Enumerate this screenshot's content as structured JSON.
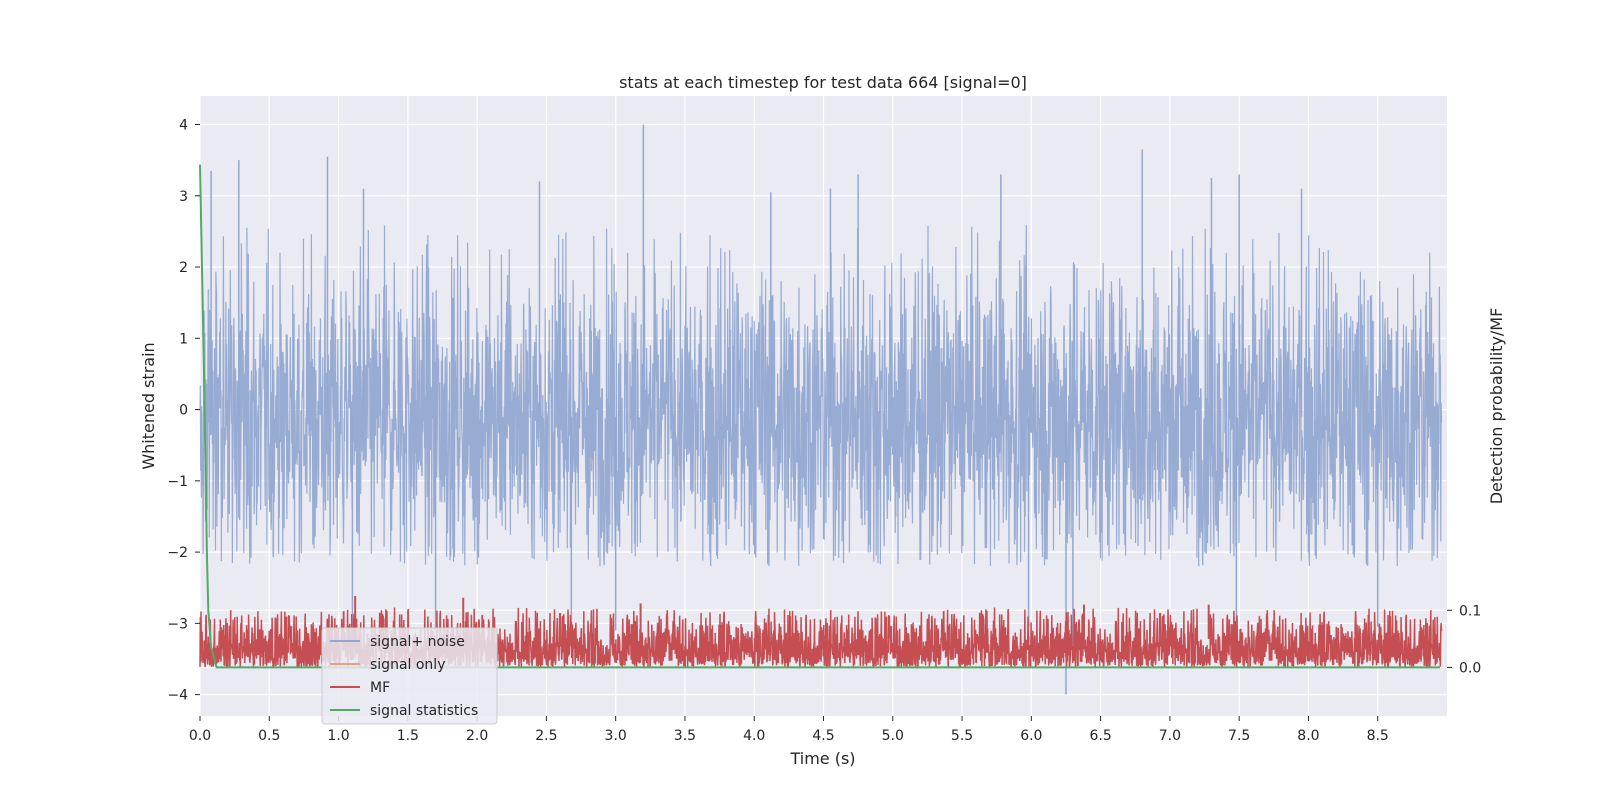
{
  "chart_data": {
    "type": "line",
    "title": "stats at each timestep for test data 664 [signal=0]",
    "xlabel": "Time (s)",
    "ylabel": "Whitened strain",
    "y2label": "Detection probability/MF",
    "xlim": [
      0,
      9.0
    ],
    "ylim": [
      -4.3,
      4.4
    ],
    "y2lim": [
      -0.085,
      1.0
    ],
    "x_ticks": [
      0.0,
      0.5,
      1.0,
      1.5,
      2.0,
      2.5,
      3.0,
      3.5,
      4.0,
      4.5,
      5.0,
      5.5,
      6.0,
      6.5,
      7.0,
      7.5,
      8.0,
      8.5
    ],
    "x_tick_labels": [
      "0.0",
      "0.5",
      "1.0",
      "1.5",
      "2.0",
      "2.5",
      "3.0",
      "3.5",
      "4.0",
      "4.5",
      "5.0",
      "5.5",
      "6.0",
      "6.5",
      "7.0",
      "7.5",
      "8.0",
      "8.5"
    ],
    "y_ticks": [
      -4,
      -3,
      -2,
      -1,
      0,
      1,
      2,
      3,
      4
    ],
    "y_tick_labels": [
      "−4",
      "−3",
      "−2",
      "−1",
      "0",
      "1",
      "2",
      "3",
      "4"
    ],
    "y2_ticks": [
      0.0,
      0.1
    ],
    "y2_tick_labels": [
      "0.0",
      "0.1"
    ],
    "grid": true,
    "legend_position": "lower-left",
    "series": [
      {
        "name": "signal+ noise",
        "color": "#92a8d1",
        "axis": "left",
        "description_values": {
          "center": -0.1,
          "typical_max": 2.3,
          "typical_min": -1.9
        },
        "peaks": [
          [
            0.08,
            3.35
          ],
          [
            0.28,
            3.5
          ],
          [
            0.92,
            3.55
          ],
          [
            1.1,
            -3.3
          ],
          [
            1.18,
            3.1
          ],
          [
            1.7,
            -3.1
          ],
          [
            2.45,
            3.2
          ],
          [
            2.68,
            -3.1
          ],
          [
            3.0,
            -3.1
          ],
          [
            3.2,
            4.0
          ],
          [
            4.12,
            3.05
          ],
          [
            4.55,
            3.1
          ],
          [
            4.75,
            3.3
          ],
          [
            5.78,
            3.3
          ],
          [
            5.98,
            -3.05
          ],
          [
            6.25,
            -4.0
          ],
          [
            6.3,
            -3.3
          ],
          [
            6.8,
            3.65
          ],
          [
            7.3,
            3.25
          ],
          [
            7.48,
            -3.3
          ],
          [
            7.5,
            3.3
          ],
          [
            7.95,
            3.1
          ],
          [
            8.5,
            -3.05
          ]
        ]
      },
      {
        "name": "signal only",
        "color": "#e8a07e",
        "axis": "left",
        "values_note": ""
      },
      {
        "name": "MF",
        "color": "#c44e52",
        "axis": "right",
        "description_values": {
          "min": 0.0,
          "typical_max": 0.1,
          "peak": 0.13
        },
        "peaks": [
          [
            1.12,
            0.125
          ],
          [
            1.9,
            0.122
          ],
          [
            3.18,
            0.112
          ],
          [
            6.38,
            0.11
          ],
          [
            7.28,
            0.11
          ]
        ]
      },
      {
        "name": "signal statistics",
        "color": "#55a868",
        "axis": "right",
        "x": [
          0.0,
          0.03,
          0.05,
          0.06,
          0.08,
          0.12,
          8.95
        ],
        "values": [
          0.88,
          0.5,
          0.2,
          0.1,
          0.035,
          0.0,
          0.0
        ]
      }
    ]
  }
}
